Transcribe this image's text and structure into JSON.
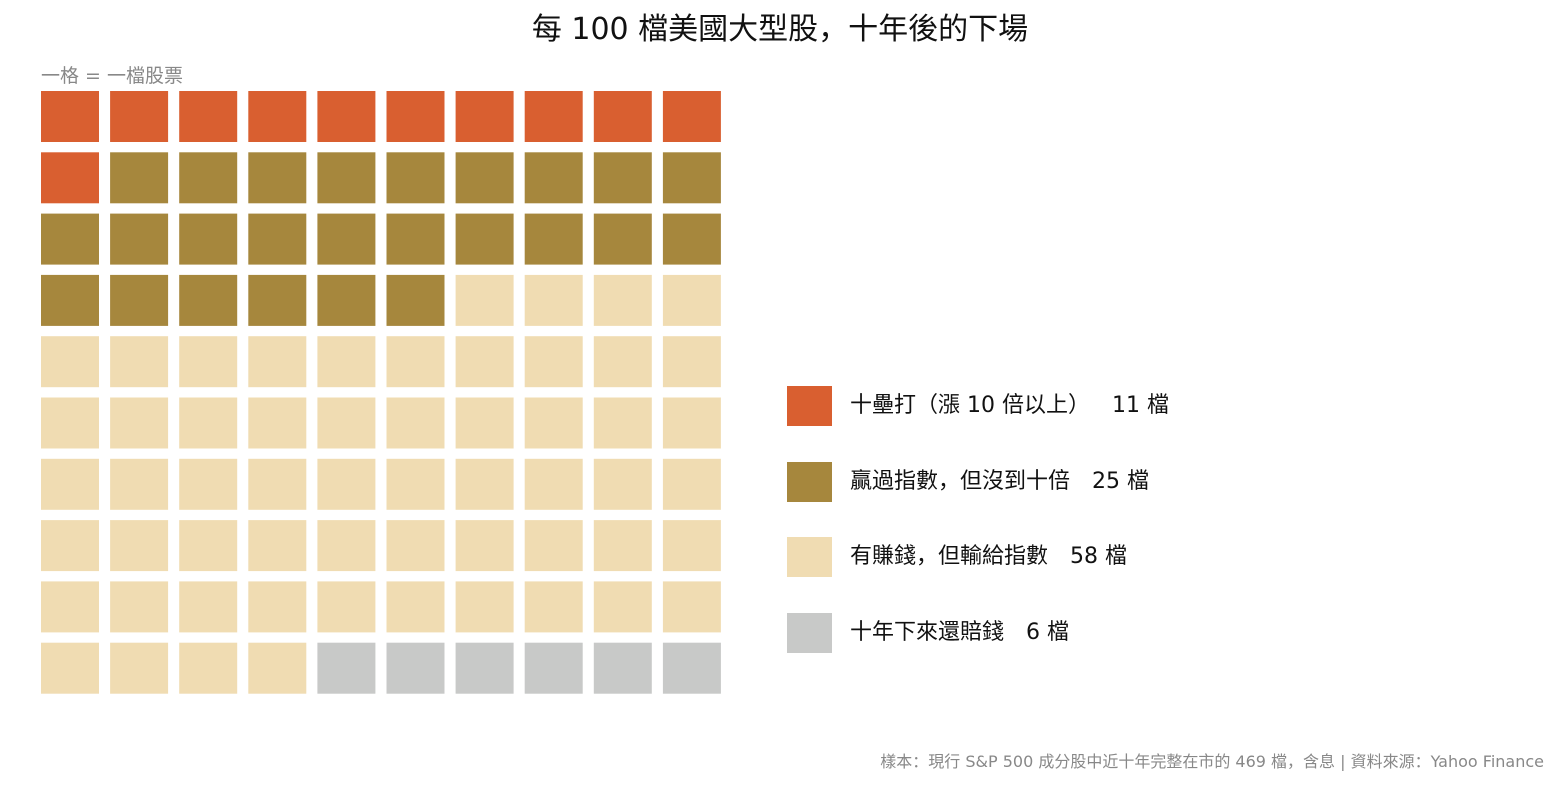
{
  "title": "每 100 檔美國大型股，十年後的下場",
  "unit_note": "一格 = 一檔股票",
  "footnote": "樣本：現行 S&P 500 成分股中近十年完整在市的 469 檔，含息 | 資料來源：Yahoo Finance",
  "chart_data": {
    "type": "waffle",
    "rows": 10,
    "columns": 10,
    "total": 100,
    "categories": [
      {
        "label": "十壘打（漲 10 倍以上）",
        "count_label": "11 檔",
        "value": 11,
        "color": "#D95F30"
      },
      {
        "label": "贏過指數，但沒到十倍",
        "count_label": "25 檔",
        "value": 25,
        "color": "#A6873D"
      },
      {
        "label": "有賺錢，但輸給指數",
        "count_label": "58 檔",
        "value": 58,
        "color": "#F0DCB2"
      },
      {
        "label": "十年下來還賠錢",
        "count_label": "6 檔",
        "value": 6,
        "color": "#C8C9C8"
      }
    ]
  }
}
